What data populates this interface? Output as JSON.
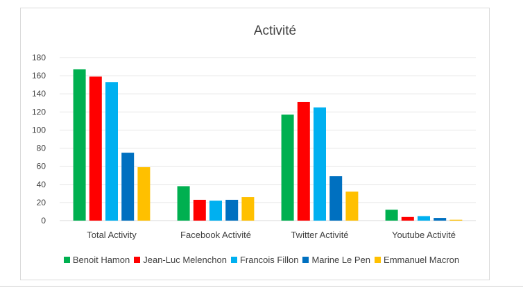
{
  "chart_data": {
    "type": "bar",
    "title": "Activité",
    "xlabel": "",
    "ylabel": "",
    "ylim": [
      0,
      180
    ],
    "yticks": [
      0,
      20,
      40,
      60,
      80,
      100,
      120,
      140,
      160,
      180
    ],
    "grid": true,
    "legend_position": "bottom",
    "categories": [
      "Total Activity",
      "Facebook Activité",
      "Twitter Activité",
      "Youtube Activité"
    ],
    "series": [
      {
        "name": "Benoit Hamon",
        "color": "#00b050",
        "values": [
          167,
          38,
          117,
          12
        ]
      },
      {
        "name": "Jean-Luc Melenchon",
        "color": "#ff0000",
        "values": [
          159,
          23,
          131,
          4
        ]
      },
      {
        "name": "Francois Fillon",
        "color": "#00b0f0",
        "values": [
          153,
          22,
          125,
          5
        ]
      },
      {
        "name": "Marine Le Pen",
        "color": "#0070c0",
        "values": [
          75,
          23,
          49,
          3
        ]
      },
      {
        "name": "Emmanuel Macron",
        "color": "#ffc000",
        "values": [
          59,
          26,
          32,
          1
        ]
      }
    ]
  }
}
